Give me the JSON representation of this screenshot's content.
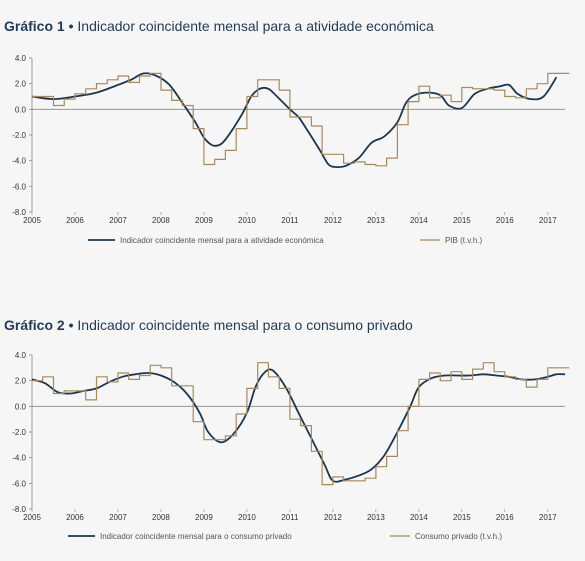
{
  "colors": {
    "indicator": "#1b3650",
    "comparison": "#a88a5a",
    "axis": "#888888",
    "background": "#f6f6f6"
  },
  "charts": [
    {
      "title_prefix": "Gráfico 1",
      "title_bullet": "•",
      "title_text": "Indicador coincidente mensal para a atividade económica",
      "legend_indicator": "Indicador coincidente mensal para a atividade económica",
      "legend_comparison": "PIB (t.v.h.)"
    },
    {
      "title_prefix": "Gráfico 2",
      "title_bullet": "•",
      "title_text": "Indicador coincidente mensal para o consumo privado",
      "legend_indicator": "Indicador coincidente mensal para o consumo privado",
      "legend_comparison": "Consumo privado (t.v.h.)"
    }
  ],
  "chart_data": [
    {
      "type": "line",
      "title": "Gráfico 1 • Indicador coincidente mensal para a atividade económica",
      "x_ticks": [
        "2005",
        "2006",
        "2007",
        "2008",
        "2009",
        "2010",
        "2011",
        "2012",
        "2013",
        "2014",
        "2015",
        "2016",
        "2017"
      ],
      "y_ticks": [
        "4.0",
        "2.0",
        "0.0",
        "-2.0",
        "-4.0",
        "-6.0",
        "-8.0"
      ],
      "ylim": [
        -8,
        4
      ],
      "xlim": [
        2005,
        2017.4
      ],
      "legend": "bottom",
      "series": [
        {
          "name": "Indicador coincidente mensal para a atividade económica",
          "style": "smooth",
          "x": [
            2005.0,
            2005.5,
            2006.0,
            2006.5,
            2007.0,
            2007.3,
            2007.6,
            2007.9,
            2008.2,
            2008.5,
            2008.8,
            2009.0,
            2009.2,
            2009.4,
            2009.6,
            2009.9,
            2010.1,
            2010.3,
            2010.5,
            2010.7,
            2011.0,
            2011.2,
            2011.4,
            2011.7,
            2011.9,
            2012.1,
            2012.3,
            2012.6,
            2012.9,
            2013.2,
            2013.5,
            2013.7,
            2013.9,
            2014.2,
            2014.5,
            2014.7,
            2015.0,
            2015.3,
            2015.6,
            2015.9,
            2016.1,
            2016.3,
            2016.6,
            2016.9,
            2017.2
          ],
          "y": [
            1.0,
            0.8,
            1.0,
            1.3,
            1.9,
            2.3,
            2.8,
            2.6,
            1.9,
            0.5,
            -1.0,
            -2.2,
            -2.8,
            -2.7,
            -1.9,
            -0.3,
            1.0,
            1.6,
            1.6,
            1.0,
            0.0,
            -0.6,
            -1.6,
            -3.2,
            -4.3,
            -4.5,
            -4.4,
            -3.8,
            -2.6,
            -2.1,
            -1.0,
            0.5,
            1.1,
            1.3,
            1.1,
            0.3,
            0.1,
            1.2,
            1.6,
            1.8,
            1.9,
            1.2,
            0.8,
            1.0,
            2.5
          ]
        },
        {
          "name": "PIB (t.v.h.)",
          "style": "step",
          "x": [
            2005.0,
            2005.25,
            2005.5,
            2005.75,
            2006.0,
            2006.25,
            2006.5,
            2006.75,
            2007.0,
            2007.25,
            2007.5,
            2007.75,
            2008.0,
            2008.25,
            2008.5,
            2008.75,
            2009.0,
            2009.25,
            2009.5,
            2009.75,
            2010.0,
            2010.25,
            2010.5,
            2010.75,
            2011.0,
            2011.25,
            2011.5,
            2011.75,
            2012.0,
            2012.25,
            2012.5,
            2012.75,
            2013.0,
            2013.25,
            2013.5,
            2013.75,
            2014.0,
            2014.25,
            2014.5,
            2014.75,
            2015.0,
            2015.25,
            2015.5,
            2015.75,
            2016.0,
            2016.25,
            2016.5,
            2016.75,
            2017.0,
            2017.25
          ],
          "y": [
            1.0,
            1.0,
            0.3,
            0.8,
            1.2,
            1.6,
            2.0,
            2.3,
            2.6,
            2.1,
            2.6,
            2.8,
            1.5,
            0.7,
            0.3,
            -1.5,
            -4.3,
            -3.9,
            -3.2,
            -1.5,
            1.0,
            2.3,
            2.3,
            1.5,
            -0.6,
            -0.6,
            -1.3,
            -3.5,
            -3.5,
            -4.2,
            -4.1,
            -4.3,
            -4.4,
            -3.8,
            -1.2,
            0.6,
            1.8,
            0.9,
            1.1,
            0.6,
            1.7,
            1.6,
            1.6,
            1.5,
            1.0,
            0.9,
            1.6,
            2.0,
            2.8,
            2.8
          ]
        }
      ]
    },
    {
      "type": "line",
      "title": "Gráfico 2 • Indicador coincidente mensal para o consumo privado",
      "x_ticks": [
        "2005",
        "2006",
        "2007",
        "2008",
        "2009",
        "2010",
        "2011",
        "2012",
        "2013",
        "2014",
        "2015",
        "2016",
        "2017"
      ],
      "y_ticks": [
        "4.0",
        "2.0",
        "0.0",
        "-2.0",
        "-4.0",
        "-6.0",
        "-8.0"
      ],
      "ylim": [
        -8,
        4
      ],
      "xlim": [
        2005,
        2017.4
      ],
      "legend": "bottom",
      "series": [
        {
          "name": "Indicador coincidente mensal para o consumo privado",
          "style": "smooth",
          "x": [
            2005.0,
            2005.3,
            2005.6,
            2005.9,
            2006.2,
            2006.5,
            2006.8,
            2007.1,
            2007.4,
            2007.7,
            2008.0,
            2008.3,
            2008.6,
            2008.9,
            2009.1,
            2009.4,
            2009.7,
            2010.0,
            2010.2,
            2010.4,
            2010.6,
            2010.9,
            2011.2,
            2011.5,
            2011.8,
            2012.0,
            2012.3,
            2012.6,
            2012.9,
            2013.2,
            2013.5,
            2013.8,
            2014.0,
            2014.3,
            2014.6,
            2014.9,
            2015.2,
            2015.5,
            2015.8,
            2016.1,
            2016.4,
            2016.7,
            2017.0,
            2017.2,
            2017.4
          ],
          "y": [
            2.1,
            1.8,
            1.1,
            1.0,
            1.2,
            1.4,
            1.9,
            2.3,
            2.5,
            2.6,
            2.4,
            1.9,
            1.0,
            -0.5,
            -2.0,
            -2.8,
            -2.1,
            -0.5,
            1.5,
            2.6,
            2.8,
            1.5,
            -0.5,
            -2.5,
            -4.5,
            -5.8,
            -5.7,
            -5.4,
            -4.9,
            -3.8,
            -2.0,
            0.0,
            1.5,
            2.2,
            2.4,
            2.4,
            2.4,
            2.5,
            2.4,
            2.3,
            2.1,
            2.1,
            2.3,
            2.5,
            2.5
          ]
        },
        {
          "name": "Consumo privado (t.v.h.)",
          "style": "step",
          "x": [
            2005.0,
            2005.25,
            2005.5,
            2005.75,
            2006.0,
            2006.25,
            2006.5,
            2006.75,
            2007.0,
            2007.25,
            2007.5,
            2007.75,
            2008.0,
            2008.25,
            2008.5,
            2008.75,
            2009.0,
            2009.25,
            2009.5,
            2009.75,
            2010.0,
            2010.25,
            2010.5,
            2010.75,
            2011.0,
            2011.25,
            2011.5,
            2011.75,
            2012.0,
            2012.25,
            2012.5,
            2012.75,
            2013.0,
            2013.25,
            2013.5,
            2013.75,
            2014.0,
            2014.25,
            2014.5,
            2014.75,
            2015.0,
            2015.25,
            2015.5,
            2015.75,
            2016.0,
            2016.25,
            2016.5,
            2016.75,
            2017.0,
            2017.25
          ],
          "y": [
            2.0,
            2.3,
            1.0,
            1.2,
            1.2,
            0.5,
            2.3,
            1.9,
            2.6,
            2.1,
            2.4,
            3.2,
            3.0,
            1.6,
            1.6,
            -1.2,
            -2.6,
            -2.6,
            -2.3,
            -0.6,
            1.4,
            3.4,
            2.3,
            1.4,
            -1.0,
            -1.5,
            -3.5,
            -6.1,
            -5.5,
            -5.8,
            -5.8,
            -5.6,
            -4.7,
            -3.9,
            -1.9,
            0.0,
            2.1,
            2.6,
            2.0,
            2.7,
            2.1,
            2.9,
            3.4,
            2.7,
            2.3,
            2.1,
            1.5,
            2.1,
            3.0,
            3.0
          ]
        }
      ]
    }
  ]
}
